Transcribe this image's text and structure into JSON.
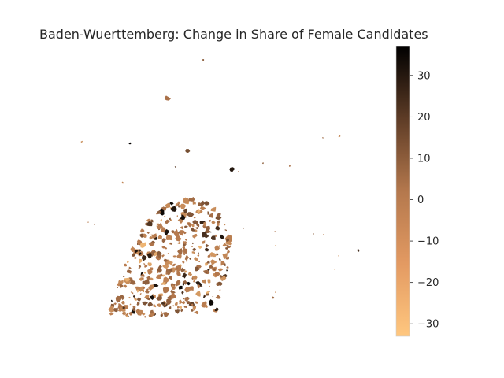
{
  "title": "Baden-Wuerttemberg: Change in Share of Female Candidates",
  "colorbar": {
    "colormap": "copper_r",
    "min": -33,
    "max": 37,
    "ticks": [
      "30",
      "20",
      "10",
      "0",
      "−10",
      "−20",
      "−30"
    ],
    "tick_values": [
      30,
      20,
      10,
      0,
      -10,
      -20,
      -30
    ],
    "color_low": "#ffc77f",
    "color_mid": "#9c633f",
    "color_high": "#000000"
  },
  "map": {
    "region": "Baden-Wuerttemberg",
    "value_field": "change in share of female candidates",
    "background": "#ffffff"
  }
}
